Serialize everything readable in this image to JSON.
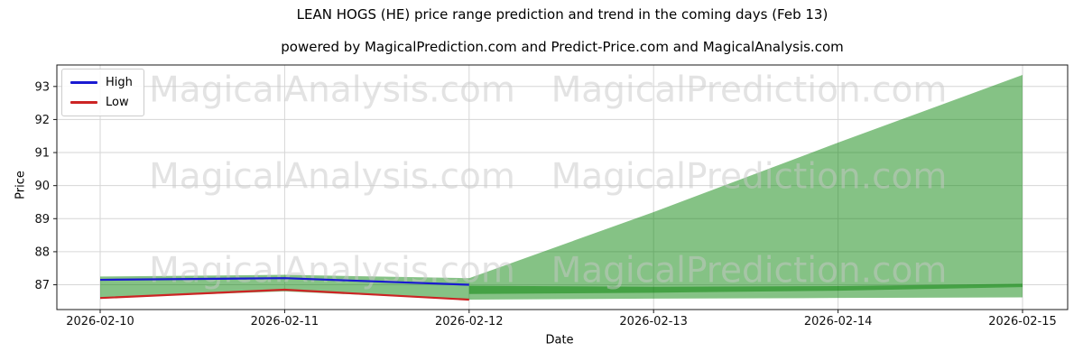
{
  "header": {
    "title": "LEAN HOGS (HE) price range prediction and trend in the coming days (Feb 13)",
    "subtitle": "powered by MagicalPrediction.com and Predict-Price.com and MagicalAnalysis.com"
  },
  "legend": {
    "items": [
      {
        "label": "High",
        "color": "#1a1ad1"
      },
      {
        "label": "Low",
        "color": "#cc2424"
      }
    ]
  },
  "watermarks": [
    {
      "text": "MagicalAnalysis.com",
      "row": 0,
      "col": 0
    },
    {
      "text": "MagicalPrediction.com",
      "row": 0,
      "col": 1
    },
    {
      "text": "MagicalAnalysis.com",
      "row": 1,
      "col": 0
    },
    {
      "text": "MagicalPrediction.com",
      "row": 1,
      "col": 1
    },
    {
      "text": "MagicalAnalysis.com",
      "row": 2,
      "col": 0
    },
    {
      "text": "MagicalPrediction.com",
      "row": 2,
      "col": 1
    }
  ],
  "chart_data": {
    "type": "line",
    "title": "LEAN HOGS (HE) price range prediction and trend in the coming days (Feb 13)",
    "xlabel": "Date",
    "ylabel": "Price",
    "x": [
      "2026-02-10",
      "2026-02-11",
      "2026-02-12",
      "2026-02-13",
      "2026-02-14",
      "2026-02-15"
    ],
    "series": [
      {
        "name": "High",
        "color": "#1a1ad1",
        "x_idx": [
          0,
          1,
          2
        ],
        "values": [
          87.15,
          87.2,
          87.0
        ]
      },
      {
        "name": "Low",
        "color": "#cc2424",
        "x_idx": [
          0,
          1,
          2
        ],
        "values": [
          86.6,
          86.85,
          86.55
        ]
      }
    ],
    "bands": [
      {
        "name": "history-range-band",
        "x_idx": [
          0,
          1,
          2
        ],
        "top": [
          87.25,
          87.3,
          87.2
        ],
        "bottom": [
          86.6,
          86.8,
          86.55
        ]
      },
      {
        "name": "forecast-fan",
        "x_idx": [
          2,
          3,
          4,
          5
        ],
        "top": [
          87.2,
          89.2,
          91.3,
          93.35
        ],
        "bottom": [
          86.55,
          86.58,
          86.6,
          86.62
        ]
      },
      {
        "name": "forecast-trend-band",
        "x_idx": [
          2,
          3,
          4,
          5
        ],
        "top": [
          86.97,
          86.94,
          86.96,
          87.03
        ],
        "bottom": [
          86.72,
          86.76,
          86.82,
          86.93
        ]
      }
    ],
    "band_color": "#008000",
    "band_opacity": 0.48,
    "y_ticks": [
      87,
      88,
      89,
      90,
      91,
      92,
      93
    ],
    "ylim": [
      86.25,
      93.65
    ],
    "grid": true,
    "legend_position": "upper left"
  },
  "colors": {
    "grid": "#d6d6d6",
    "spine": "#1a1a1a",
    "tick_text": "#111111",
    "watermark": "#c8c8c8"
  }
}
